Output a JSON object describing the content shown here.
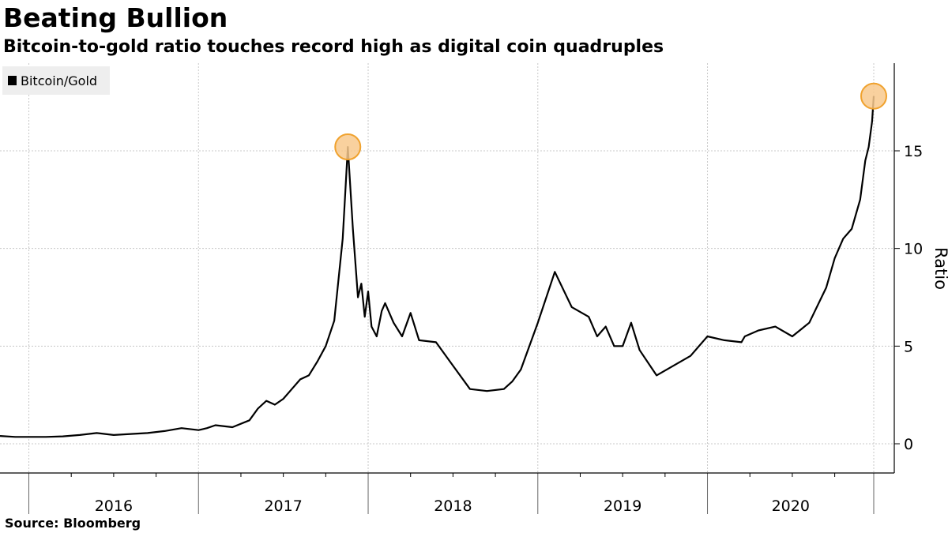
{
  "header": {
    "title": "Beating Bullion",
    "subtitle": "Bitcoin-to-gold ratio touches record high as digital coin quadruples"
  },
  "footer": {
    "source": "Source:  Bloomberg"
  },
  "chart_data": {
    "type": "line",
    "title": "Beating Bullion",
    "subtitle": "Bitcoin-to-gold ratio touches record high as digital coin quadruples",
    "ylabel": "Ratio",
    "xlabel": "",
    "ylim": [
      -1.5,
      19.5
    ],
    "xlim": [
      2015.83,
      2020.98
    ],
    "y_ticks": [
      0,
      5,
      10,
      15
    ],
    "x_tick_labels": [
      "2016",
      "2017",
      "2018",
      "2019",
      "2020"
    ],
    "grid": true,
    "legend_position": "top-left",
    "colors": {
      "line": "#000000",
      "highlight_fill": "#f8c98d",
      "highlight_stroke": "#f0a22e",
      "grid": "#c8c8c8",
      "legend_bg": "#eeeeee"
    },
    "series": [
      {
        "name": "Bitcoin/Gold",
        "x": [
          2015.83,
          2015.92,
          2016.0,
          2016.1,
          2016.2,
          2016.3,
          2016.4,
          2016.45,
          2016.5,
          2016.6,
          2016.7,
          2016.8,
          2016.9,
          2017.0,
          2017.05,
          2017.1,
          2017.2,
          2017.3,
          2017.35,
          2017.4,
          2017.45,
          2017.5,
          2017.55,
          2017.6,
          2017.65,
          2017.7,
          2017.75,
          2017.8,
          2017.85,
          2017.88,
          2017.91,
          2017.94,
          2017.96,
          2017.98,
          2018.0,
          2018.02,
          2018.05,
          2018.08,
          2018.1,
          2018.15,
          2018.2,
          2018.25,
          2018.3,
          2018.4,
          2018.5,
          2018.6,
          2018.7,
          2018.8,
          2018.85,
          2018.9,
          2019.0,
          2019.1,
          2019.2,
          2019.3,
          2019.35,
          2019.4,
          2019.45,
          2019.5,
          2019.55,
          2019.6,
          2019.7,
          2019.8,
          2019.9,
          2020.0,
          2020.1,
          2020.2,
          2020.22,
          2020.3,
          2020.4,
          2020.5,
          2020.6,
          2020.7,
          2020.75,
          2020.8,
          2020.85,
          2020.9,
          2020.93,
          2020.95,
          2020.97,
          2020.98
        ],
        "values": [
          0.4,
          0.35,
          0.35,
          0.35,
          0.38,
          0.45,
          0.55,
          0.5,
          0.45,
          0.5,
          0.55,
          0.65,
          0.8,
          0.7,
          0.8,
          0.95,
          0.85,
          1.2,
          1.8,
          2.2,
          2.0,
          2.3,
          2.8,
          3.3,
          3.5,
          4.2,
          5.0,
          6.3,
          10.5,
          15.2,
          11.0,
          7.5,
          8.2,
          6.5,
          7.8,
          6.0,
          5.5,
          6.8,
          7.2,
          6.2,
          5.5,
          6.7,
          5.3,
          5.2,
          4.0,
          2.8,
          2.7,
          2.8,
          3.2,
          3.8,
          6.2,
          8.8,
          7.0,
          6.5,
          5.5,
          6.0,
          5.0,
          5.0,
          6.2,
          4.8,
          3.5,
          4.0,
          4.5,
          5.5,
          5.3,
          5.2,
          5.5,
          5.8,
          6.0,
          5.5,
          6.2,
          8.0,
          9.5,
          10.5,
          11.0,
          12.5,
          14.5,
          15.2,
          16.5,
          17.8
        ]
      }
    ],
    "highlights": [
      {
        "x": 2017.88,
        "value": 15.2
      },
      {
        "x": 2020.98,
        "value": 17.8
      }
    ]
  }
}
